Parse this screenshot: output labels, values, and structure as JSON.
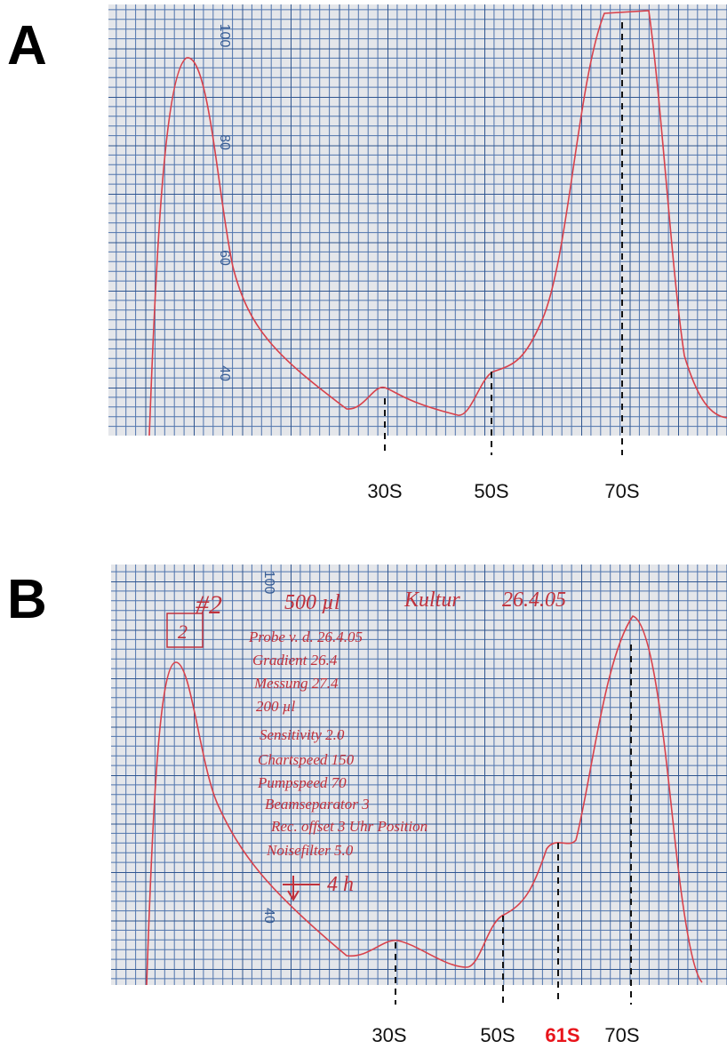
{
  "panels": [
    {
      "label": "A",
      "scale_labels": [
        "100",
        "80",
        "60",
        "40"
      ],
      "peak_labels": [
        "30S",
        "50S",
        "70S"
      ]
    },
    {
      "label": "B",
      "scale_labels": [
        "100",
        "40"
      ],
      "peak_labels": [
        "30S",
        "50S",
        "61S",
        "70S"
      ],
      "notes": [
        "#2",
        "500 µl",
        "Kultur",
        "26.4.05",
        "2",
        "Probe v. d. 26.4.05",
        "Gradient 26.4",
        "Messung 27.4",
        "200 µl",
        "Sensitivity 2.0",
        "Chartspeed 150",
        "Pumpspeed 70",
        "Beamseparator 3",
        "Rec. offset 3 Uhr Position",
        "Noisefilter 5.0",
        "4 h"
      ]
    }
  ]
}
